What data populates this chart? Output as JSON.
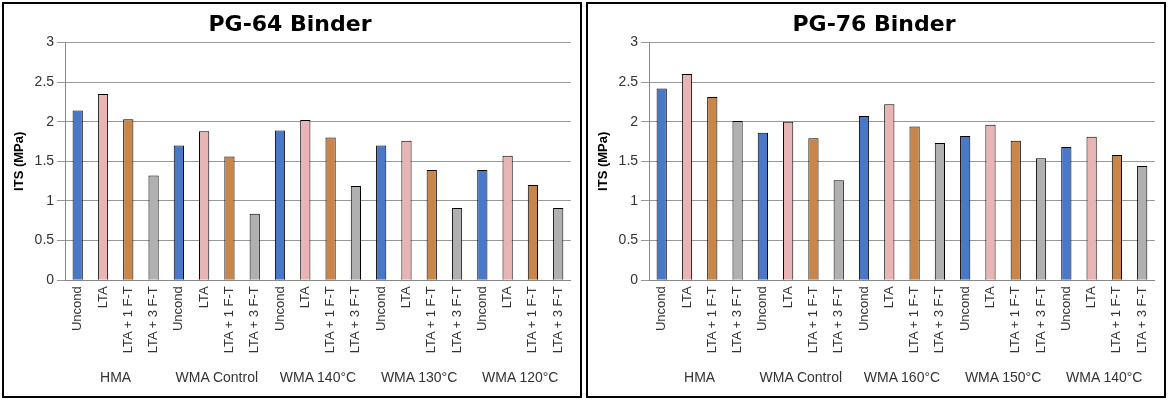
{
  "chart_data": [
    {
      "type": "bar",
      "title": "PG-64 Binder",
      "ylabel": "ITS (MPa)",
      "categories": [
        "Uncond",
        "LTA",
        "LTA + 1 F-T",
        "LTA + 3 F-T",
        "Uncond",
        "LTA",
        "LTA + 1 F-T",
        "LTA + 3 F-T",
        "Uncond",
        "LTA",
        "LTA + 1 F-T",
        "LTA + 3 F-T",
        "Uncond",
        "LTA",
        "LTA + 1 F-T",
        "LTA + 3 F-T",
        "Uncond",
        "LTA",
        "LTA + 1 F-T",
        "LTA + 3 F-T"
      ],
      "values": [
        2.14,
        2.35,
        2.03,
        1.32,
        1.7,
        1.88,
        1.56,
        0.84,
        1.89,
        2.02,
        1.8,
        1.19,
        1.7,
        1.76,
        1.39,
        0.91,
        1.39,
        1.57,
        1.2,
        0.91
      ],
      "colors": [
        "#4a78c8",
        "#e8b4b4",
        "#c8864a",
        "#b0b0b0",
        "#4a78c8",
        "#e8b4b4",
        "#c8864a",
        "#b0b0b0",
        "#4a78c8",
        "#e8b4b4",
        "#c8864a",
        "#b0b0b0",
        "#4a78c8",
        "#e8b4b4",
        "#c8864a",
        "#b0b0b0",
        "#4a78c8",
        "#e8b4b4",
        "#c8864a",
        "#b0b0b0"
      ],
      "annotations": [
        "HMA",
        "WMA Control",
        "WMA 140°C",
        "WMA 130°C",
        "WMA 120°C"
      ],
      "ylim": [
        0,
        3
      ],
      "yticks": [
        0,
        0.5,
        1,
        1.5,
        2,
        2.5,
        3
      ],
      "grid": "y"
    },
    {
      "type": "bar",
      "title": "PG-76 Binder",
      "ylabel": "ITS (MPa)",
      "categories": [
        "Uncond",
        "LTA",
        "LTA + 1 F-T",
        "LTA + 3 F-T",
        "Uncond",
        "LTA",
        "LTA + 1 F-T",
        "LTA + 3 F-T",
        "Uncond",
        "LTA",
        "LTA + 1 F-T",
        "LTA + 3 F-T",
        "Uncond",
        "LTA",
        "LTA + 1 F-T",
        "LTA + 3 F-T",
        "Uncond",
        "LTA",
        "LTA + 1 F-T",
        "LTA + 3 F-T"
      ],
      "values": [
        2.42,
        2.6,
        2.31,
        2.01,
        1.86,
        2.0,
        1.79,
        1.26,
        2.07,
        2.22,
        1.94,
        1.73,
        1.82,
        1.96,
        1.76,
        1.54,
        1.68,
        1.81,
        1.58,
        1.44
      ],
      "colors": [
        "#4a78c8",
        "#e8b4b4",
        "#c8864a",
        "#b0b0b0",
        "#4a78c8",
        "#e8b4b4",
        "#c8864a",
        "#b0b0b0",
        "#4a78c8",
        "#e8b4b4",
        "#c8864a",
        "#b0b0b0",
        "#4a78c8",
        "#e8b4b4",
        "#c8864a",
        "#b0b0b0",
        "#4a78c8",
        "#e8b4b4",
        "#c8864a",
        "#b0b0b0"
      ],
      "annotations": [
        "HMA",
        "WMA Control",
        "WMA 160°C",
        "WMA 150°C",
        "WMA 140°C"
      ],
      "ylim": [
        0,
        3
      ],
      "yticks": [
        0,
        0.5,
        1,
        1.5,
        2,
        2.5,
        3
      ],
      "grid": "y"
    }
  ]
}
